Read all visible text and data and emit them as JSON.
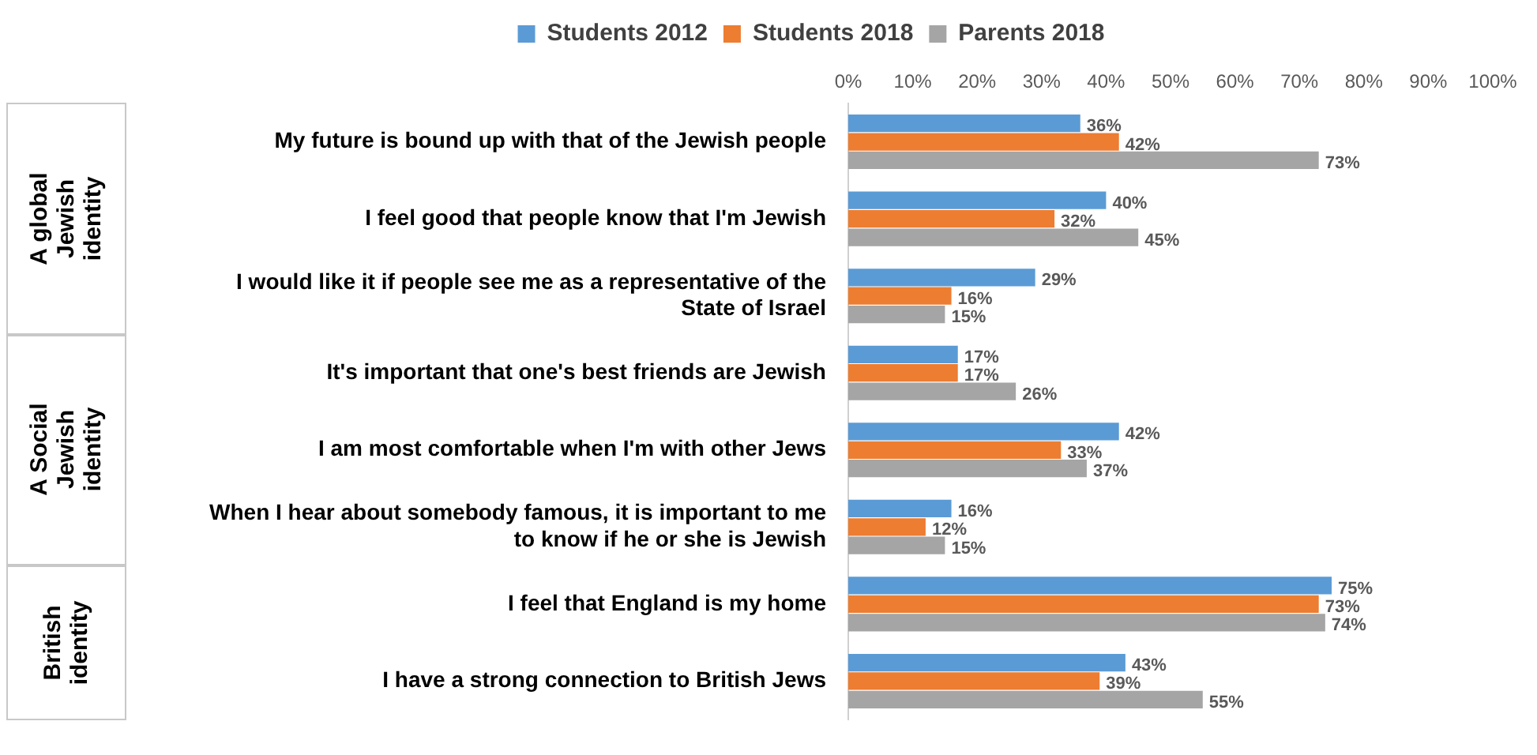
{
  "chart_data": {
    "type": "bar",
    "orientation": "horizontal",
    "legend": "top",
    "grid": false,
    "categories": [
      "My future is bound up with that of the Jewish people",
      "I feel good that people know that I'm Jewish",
      "I would like it if people see me as a representative of the State of Israel",
      "It's important that one's best friends are Jewish",
      "I am most comfortable when I'm with other Jews",
      "When I hear about somebody famous, it is important to me to know if he or she is Jewish",
      "I feel that England is my home",
      "I have a strong connection to British Jews"
    ],
    "xlim": [
      0,
      100
    ],
    "xticks": [
      {
        "value": 0,
        "label": "0%"
      },
      {
        "value": 10,
        "label": "10%"
      },
      {
        "value": 20,
        "label": "20%"
      },
      {
        "value": 30,
        "label": "30%"
      },
      {
        "value": 40,
        "label": "40%"
      },
      {
        "value": 50,
        "label": "50%"
      },
      {
        "value": 60,
        "label": "60%"
      },
      {
        "value": 70,
        "label": "70%"
      },
      {
        "value": 80,
        "label": "80%"
      },
      {
        "value": 90,
        "label": "90%"
      },
      {
        "value": 100,
        "label": "100%"
      }
    ],
    "series": [
      {
        "name": "Students 2012",
        "color": "#5b9bd5",
        "values": [
          36,
          40,
          29,
          17,
          42,
          16,
          75,
          43
        ],
        "value_labels": [
          "36%",
          "40%",
          "29%",
          "17%",
          "42%",
          "16%",
          "75%",
          "43%"
        ]
      },
      {
        "name": "Students 2018",
        "color": "#ed7d31",
        "values": [
          42,
          32,
          16,
          17,
          33,
          12,
          73,
          39
        ],
        "value_labels": [
          "42%",
          "32%",
          "16%",
          "17%",
          "33%",
          "12%",
          "73%",
          "39%"
        ]
      },
      {
        "name": "Parents 2018",
        "color": "#a5a5a5",
        "values": [
          73,
          45,
          15,
          26,
          37,
          15,
          74,
          55
        ],
        "value_labels": [
          "73%",
          "45%",
          "15%",
          "26%",
          "37%",
          "15%",
          "74%",
          "55%"
        ]
      }
    ],
    "annotations": [
      "A global Jewish identity",
      "A Social Jewish identity",
      "British identity"
    ]
  }
}
